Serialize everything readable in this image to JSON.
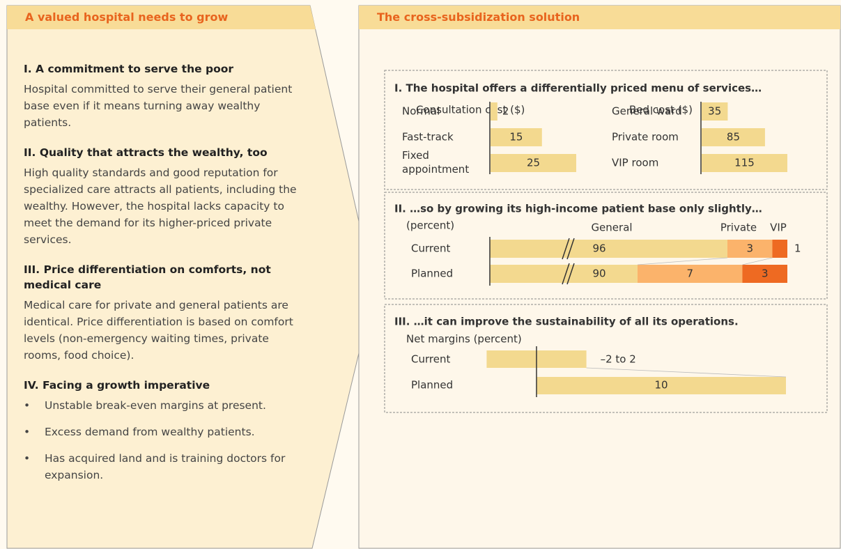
{
  "left": {
    "title": "A valued hospital needs to grow",
    "sections": [
      {
        "heading": "I. A commitment to serve the poor",
        "body": "Hospital committed to serve their general patient base even if it means turning away wealthy patients."
      },
      {
        "heading": "II. Quality that attracts the wealthy, too",
        "body": "High quality standards and good reputation for specialized care attracts all patients, including the wealthy. However, the hospital lacks capacity to meet the demand for its higher-priced private services."
      },
      {
        "heading": "III. Price differentiation on comforts, not medical care",
        "body": "Medical care for private and general patients are identical. Price differentiation is based on comfort levels (non-emergency waiting times, private rooms, food choice)."
      },
      {
        "heading": "IV. Facing a growth imperative",
        "bullets": [
          "Unstable break-even margins at present.",
          "Excess demand from wealthy patients.",
          "Has acquired land and is training doctors for expansion."
        ]
      }
    ]
  },
  "right": {
    "title": "The cross-subsidization solution",
    "menu": {
      "title": "I. The hospital offers a differentially priced menu of services…",
      "consultation": {
        "label": "Consultation cost ($)",
        "categories": [
          "Normal",
          "Fast-track",
          "Fixed appointment"
        ],
        "values": [
          2,
          15,
          25
        ]
      },
      "bed": {
        "label": "Bed cost ($)",
        "categories": [
          "General ward",
          "Private room",
          "VIP room"
        ],
        "values": [
          35,
          85,
          115
        ]
      }
    },
    "mix": {
      "title": "II. …so by growing its high-income patient base only slightly…",
      "unit": "(percent)",
      "categories": [
        "Current",
        "Planned"
      ],
      "series": [
        {
          "name": "General",
          "color": "#f3d98f",
          "values": [
            96,
            90
          ]
        },
        {
          "name": "Private",
          "color": "#fbb36b",
          "values": [
            3,
            7
          ]
        },
        {
          "name": "VIP",
          "color": "#ee6a22",
          "values": [
            1,
            3
          ]
        }
      ]
    },
    "margins": {
      "title": "III. …it can improve the sustainability of all its operations.",
      "label": "Net margins (percent)",
      "categories": [
        "Current",
        "Planned"
      ],
      "current": {
        "low": -2,
        "high": 2,
        "value_label": "–2  to 2"
      },
      "planned": 10,
      "color": "#f3d98f"
    }
  }
}
